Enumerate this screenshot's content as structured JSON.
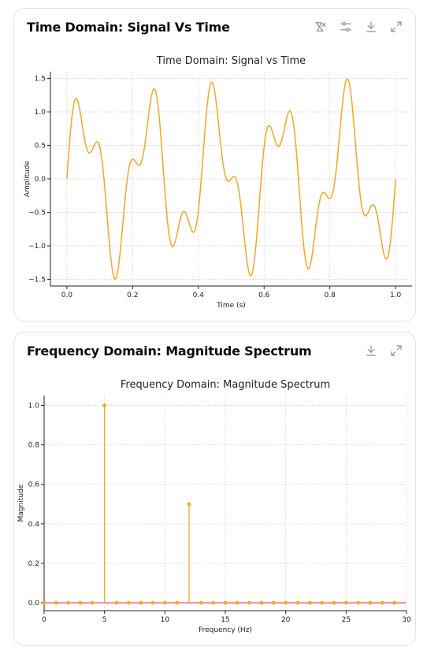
{
  "cards": [
    {
      "title": "Time Domain: Signal Vs Time",
      "buttons": [
        "chart-type-icon",
        "settings-icon",
        "download-icon",
        "expand-icon"
      ]
    },
    {
      "title": "Frequency Domain: Magnitude Spectrum",
      "buttons": [
        "download-icon",
        "expand-icon"
      ]
    }
  ],
  "colors": {
    "series": "#f5a623",
    "baseline": "#e75480",
    "grid": "#d0d0d0",
    "axis": "#222222"
  },
  "chart_data": [
    {
      "type": "line",
      "title": "Time Domain: Signal vs Time",
      "xlabel": "Time (s)",
      "ylabel": "Amplitude",
      "xlim": [
        -0.05,
        1.05
      ],
      "ylim": [
        -1.6,
        1.6
      ],
      "xticks": [
        0.0,
        0.2,
        0.4,
        0.6,
        0.8,
        1.0
      ],
      "xtick_labels": [
        "0.0",
        "0.2",
        "0.4",
        "0.6",
        "0.8",
        "1.0"
      ],
      "yticks": [
        -1.5,
        -1.0,
        -0.5,
        0.0,
        0.5,
        1.0,
        1.5
      ],
      "ytick_labels": [
        "−1.5",
        "−1.0",
        "−0.5",
        "0.0",
        "0.5",
        "1.0",
        "1.5"
      ],
      "grid": true,
      "series": [
        {
          "function": "sin(2π·5·t) + 0.5·sin(2π·12·t)",
          "x_range": [
            0,
            1
          ]
        }
      ]
    },
    {
      "type": "stem",
      "title": "Frequency Domain: Magnitude Spectrum",
      "xlabel": "Frequency (Hz)",
      "ylabel": "Magnitude",
      "xlim": [
        0,
        30
      ],
      "ylim": [
        -0.04,
        1.05
      ],
      "xticks": [
        0,
        5,
        10,
        15,
        20,
        25,
        30
      ],
      "xtick_labels": [
        "0",
        "5",
        "10",
        "15",
        "20",
        "25",
        "30"
      ],
      "yticks": [
        0.0,
        0.2,
        0.4,
        0.6,
        0.8,
        1.0
      ],
      "ytick_labels": [
        "0.0",
        "0.2",
        "0.4",
        "0.6",
        "0.8",
        "1.0"
      ],
      "grid": true,
      "x": [
        0,
        1,
        2,
        3,
        4,
        5,
        6,
        7,
        8,
        9,
        10,
        11,
        12,
        13,
        14,
        15,
        16,
        17,
        18,
        19,
        20,
        21,
        22,
        23,
        24,
        25,
        26,
        27,
        28,
        29
      ],
      "values": [
        0,
        0,
        0,
        0,
        0,
        1.0,
        0,
        0,
        0,
        0,
        0,
        0,
        0.5,
        0,
        0,
        0,
        0,
        0,
        0,
        0,
        0,
        0,
        0,
        0,
        0,
        0,
        0,
        0,
        0,
        0
      ]
    }
  ]
}
